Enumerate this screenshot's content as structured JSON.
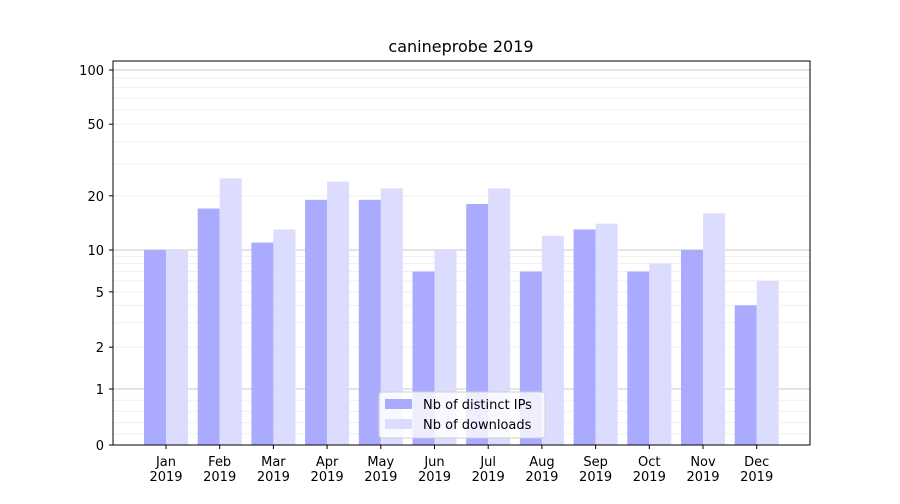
{
  "chart_data": {
    "type": "bar",
    "title": "canineprobe 2019",
    "xlabel": "",
    "ylabel": "",
    "yscale": "symlog",
    "ylim": [
      0,
      120
    ],
    "yticks": [
      0,
      1,
      2,
      5,
      10,
      20,
      50,
      100
    ],
    "ytick_labels": [
      "0",
      "1",
      "2",
      "5",
      "10",
      "20",
      "50",
      "100"
    ],
    "grid": true,
    "categories": [
      "Jan\n2019",
      "Feb\n2019",
      "Mar\n2019",
      "Apr\n2019",
      "May\n2019",
      "Jun\n2019",
      "Jul\n2019",
      "Aug\n2019",
      "Sep\n2019",
      "Oct\n2019",
      "Nov\n2019",
      "Dec\n2019"
    ],
    "series": [
      {
        "name": "Nb of distinct IPs",
        "color": "#aaaaff",
        "values": [
          10,
          17,
          11,
          19,
          19,
          7,
          18,
          7,
          13,
          7,
          10,
          4
        ]
      },
      {
        "name": "Nb of downloads",
        "color": "#dcdcff",
        "values": [
          10,
          25,
          13,
          24,
          22,
          10,
          22,
          12,
          14,
          8,
          16,
          6
        ]
      }
    ],
    "legend_placement": "lower-center"
  }
}
